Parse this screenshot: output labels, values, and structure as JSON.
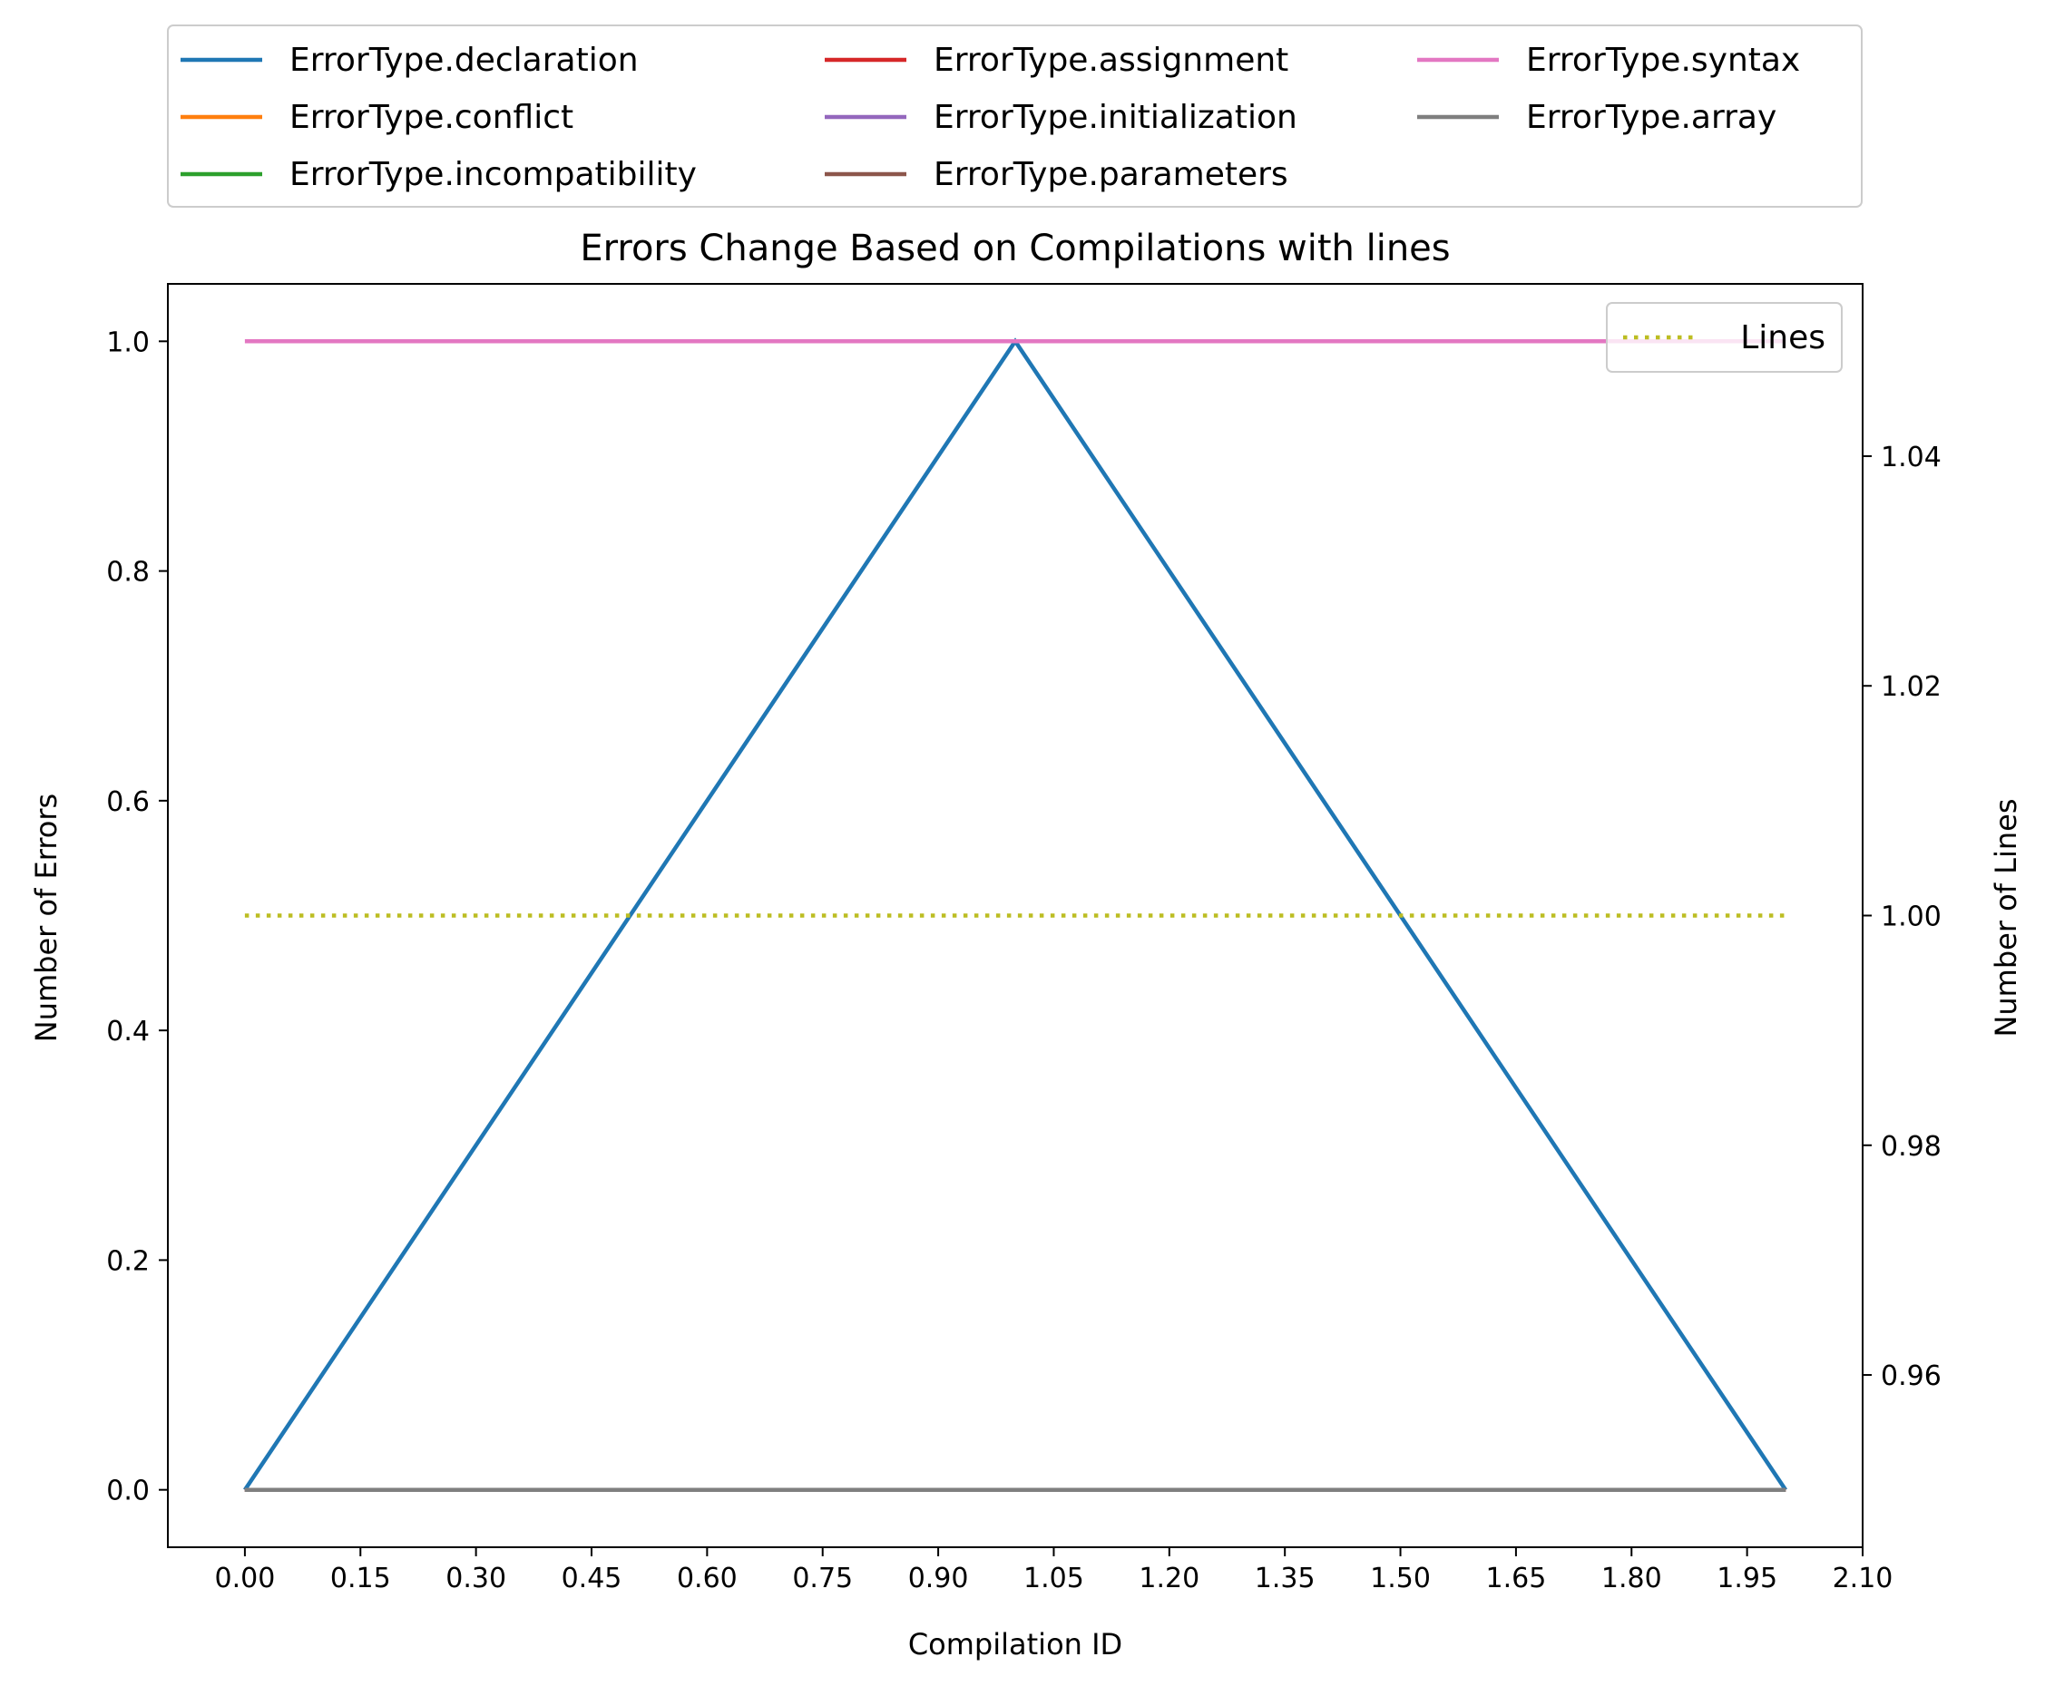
{
  "chart_data": {
    "type": "line",
    "title": "Errors Change Based on Compilations with lines",
    "xlabel": "Compilation ID",
    "ylabel": "Number of Errors",
    "ylabel_right": "Number of Lines",
    "xlim": [
      -0.1,
      2.1
    ],
    "ylim": [
      -0.05,
      1.05
    ],
    "ylim_right": [
      0.945,
      1.055
    ],
    "x_ticks": [
      "0.00",
      "0.15",
      "0.30",
      "0.45",
      "0.60",
      "0.75",
      "0.90",
      "1.05",
      "1.20",
      "1.35",
      "1.50",
      "1.65",
      "1.80",
      "1.95",
      "2.10"
    ],
    "y_ticks": [
      "0.0",
      "0.2",
      "0.4",
      "0.6",
      "0.8",
      "1.0"
    ],
    "y_ticks_right": [
      "0.96",
      "0.98",
      "1.00",
      "1.02",
      "1.04"
    ],
    "grid": false,
    "legend_placement": "above plot, 3 columns",
    "x": [
      0,
      1,
      2
    ],
    "series": [
      {
        "name": "ErrorType.declaration",
        "values": [
          0,
          1,
          0
        ],
        "color": "#1f77b4"
      },
      {
        "name": "ErrorType.conflict",
        "values": [
          0,
          0,
          0
        ],
        "color": "#ff7f0e"
      },
      {
        "name": "ErrorType.incompatibility",
        "values": [
          0,
          0,
          0
        ],
        "color": "#2ca02c"
      },
      {
        "name": "ErrorType.assignment",
        "values": [
          0,
          0,
          0
        ],
        "color": "#d62728"
      },
      {
        "name": "ErrorType.initialization",
        "values": [
          0,
          0,
          0
        ],
        "color": "#9467bd"
      },
      {
        "name": "ErrorType.parameters",
        "values": [
          0,
          0,
          0
        ],
        "color": "#8c564b"
      },
      {
        "name": "ErrorType.syntax",
        "values": [
          1,
          1,
          1
        ],
        "color": "#e377c2"
      },
      {
        "name": "ErrorType.array",
        "values": [
          0,
          0,
          0
        ],
        "color": "#7f7f7f"
      }
    ],
    "lines_series": {
      "name": "Lines",
      "values": [
        1,
        1,
        1
      ],
      "color": "#bcbd22",
      "style": "dotted",
      "axis": "right"
    },
    "lines_legend_placement": "upper right"
  }
}
